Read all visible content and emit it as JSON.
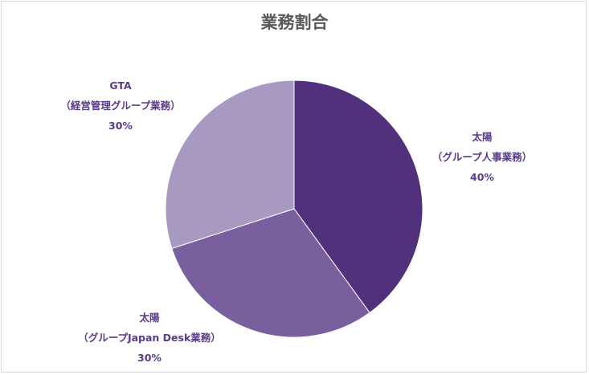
{
  "chart_data": {
    "type": "pie",
    "title": "業務割合",
    "slices": [
      {
        "label_lines": [
          "太陽",
          "（グループ人事業務）"
        ],
        "value": 40,
        "value_label": "40%",
        "color": "#51317c"
      },
      {
        "label_lines": [
          "太陽",
          "（グループJapan Desk業務）"
        ],
        "value": 30,
        "value_label": "30%",
        "color": "#7a5f9e"
      },
      {
        "label_lines": [
          "GTA",
          "（経営管理グループ業務）"
        ],
        "value": 30,
        "value_label": "30%",
        "color": "#a899c1"
      }
    ],
    "label_color": "#5a3a8a",
    "start_angle_deg": 0,
    "direction": "clockwise",
    "legend": "none"
  }
}
